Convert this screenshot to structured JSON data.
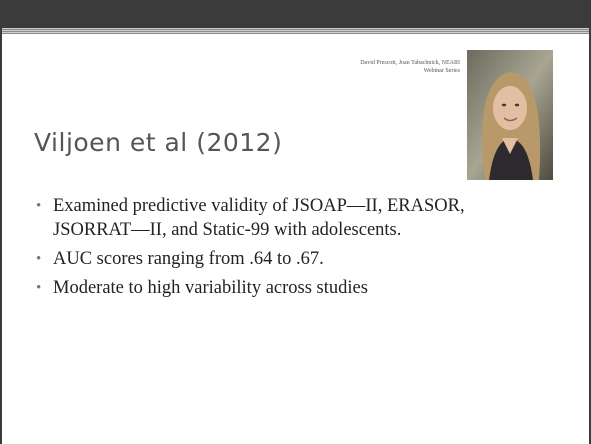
{
  "credit": "David Prescott, Joan Tabachnick, NEARI Webinar Series",
  "title": "Viljoen et al (2012)",
  "bullets": [
    "Examined predictive validity of JSOAP—II, ERASOR, JSORRAT—II, and Static-99 with adolescents.",
    "AUC scores ranging from .64 to .67.",
    "Moderate to high variability across studies"
  ]
}
